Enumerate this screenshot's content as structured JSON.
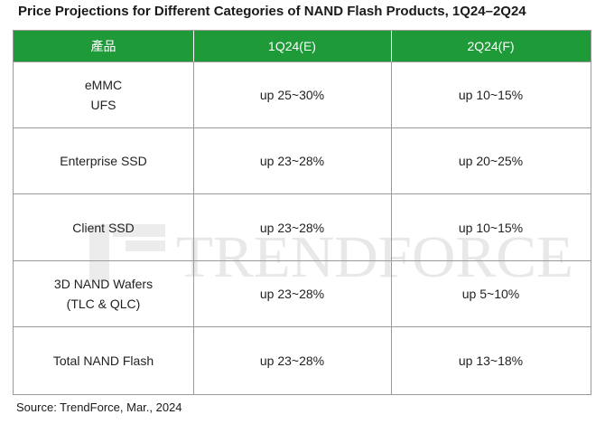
{
  "title": "Price Projections for Different Categories of NAND Flash Products, 1Q24–2Q24",
  "table": {
    "headers": [
      "產品",
      "1Q24(E)",
      "2Q24(F)"
    ],
    "rows": [
      {
        "product": [
          "eMMC",
          "UFS"
        ],
        "q1": "up 25~30%",
        "q2": "up 10~15%"
      },
      {
        "product": [
          "Enterprise SSD"
        ],
        "q1": "up 23~28%",
        "q2": "up 20~25%"
      },
      {
        "product": [
          "Client SSD"
        ],
        "q1": "up 23~28%",
        "q2": "up 10~15%"
      },
      {
        "product": [
          "3D NAND Wafers",
          "(TLC & QLC)"
        ],
        "q1": "up 23~28%",
        "q2": "up 5~10%"
      },
      {
        "product": [
          "Total NAND Flash"
        ],
        "q1": "up 23~28%",
        "q2": "up 13~18%"
      }
    ]
  },
  "watermark": "TRENDFORCE",
  "source": "Source: TrendForce, Mar., 2024",
  "colors": {
    "header_bg": "#1f9a39",
    "header_text": "#ffffff",
    "grid_line": "#9a9a9a",
    "watermark": "#e6e6e6"
  }
}
